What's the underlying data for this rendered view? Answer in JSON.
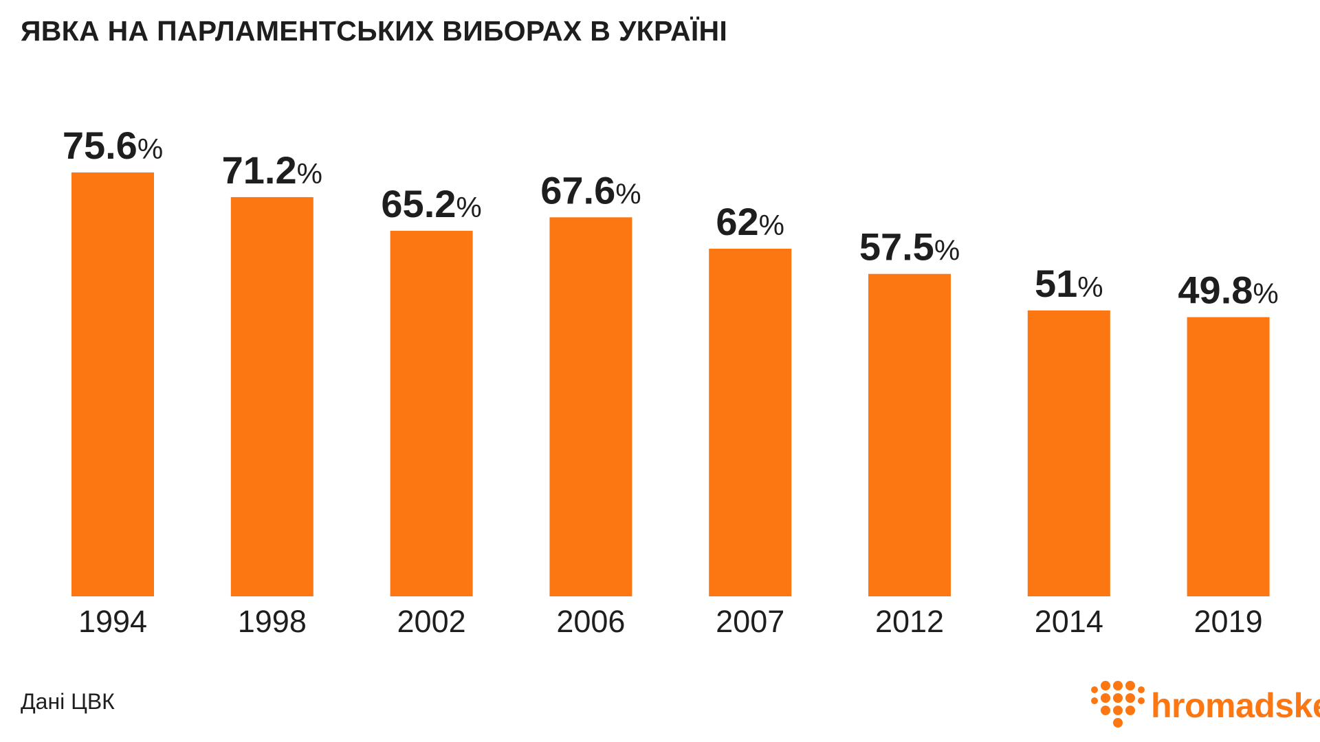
{
  "title": "ЯВКА НА ПАРЛАМЕНТСЬКИХ ВИБОРАХ В УКРАЇНІ",
  "source": "Дані ЦВК",
  "logo_text": "hromadske",
  "colors": {
    "bar": "#fc7712",
    "text": "#1e1e1e",
    "background": "#ffffff"
  },
  "chart_data": {
    "type": "bar",
    "categories": [
      "1994",
      "1998",
      "2002",
      "2006",
      "2007",
      "2012",
      "2014",
      "2019"
    ],
    "values": [
      75.6,
      71.2,
      65.2,
      67.6,
      62,
      57.5,
      51,
      49.8
    ],
    "value_labels": [
      "75.6",
      "71.2",
      "65.2",
      "67.6",
      "62",
      "57.5",
      "51",
      "49.8"
    ],
    "value_unit": "%",
    "title": "ЯВКА НА ПАРЛАМЕНТСЬКИХ ВИБОРАХ В УКРАЇНІ",
    "xlabel": "",
    "ylabel": "",
    "ylim": [
      0,
      75.6
    ],
    "grid": false
  }
}
